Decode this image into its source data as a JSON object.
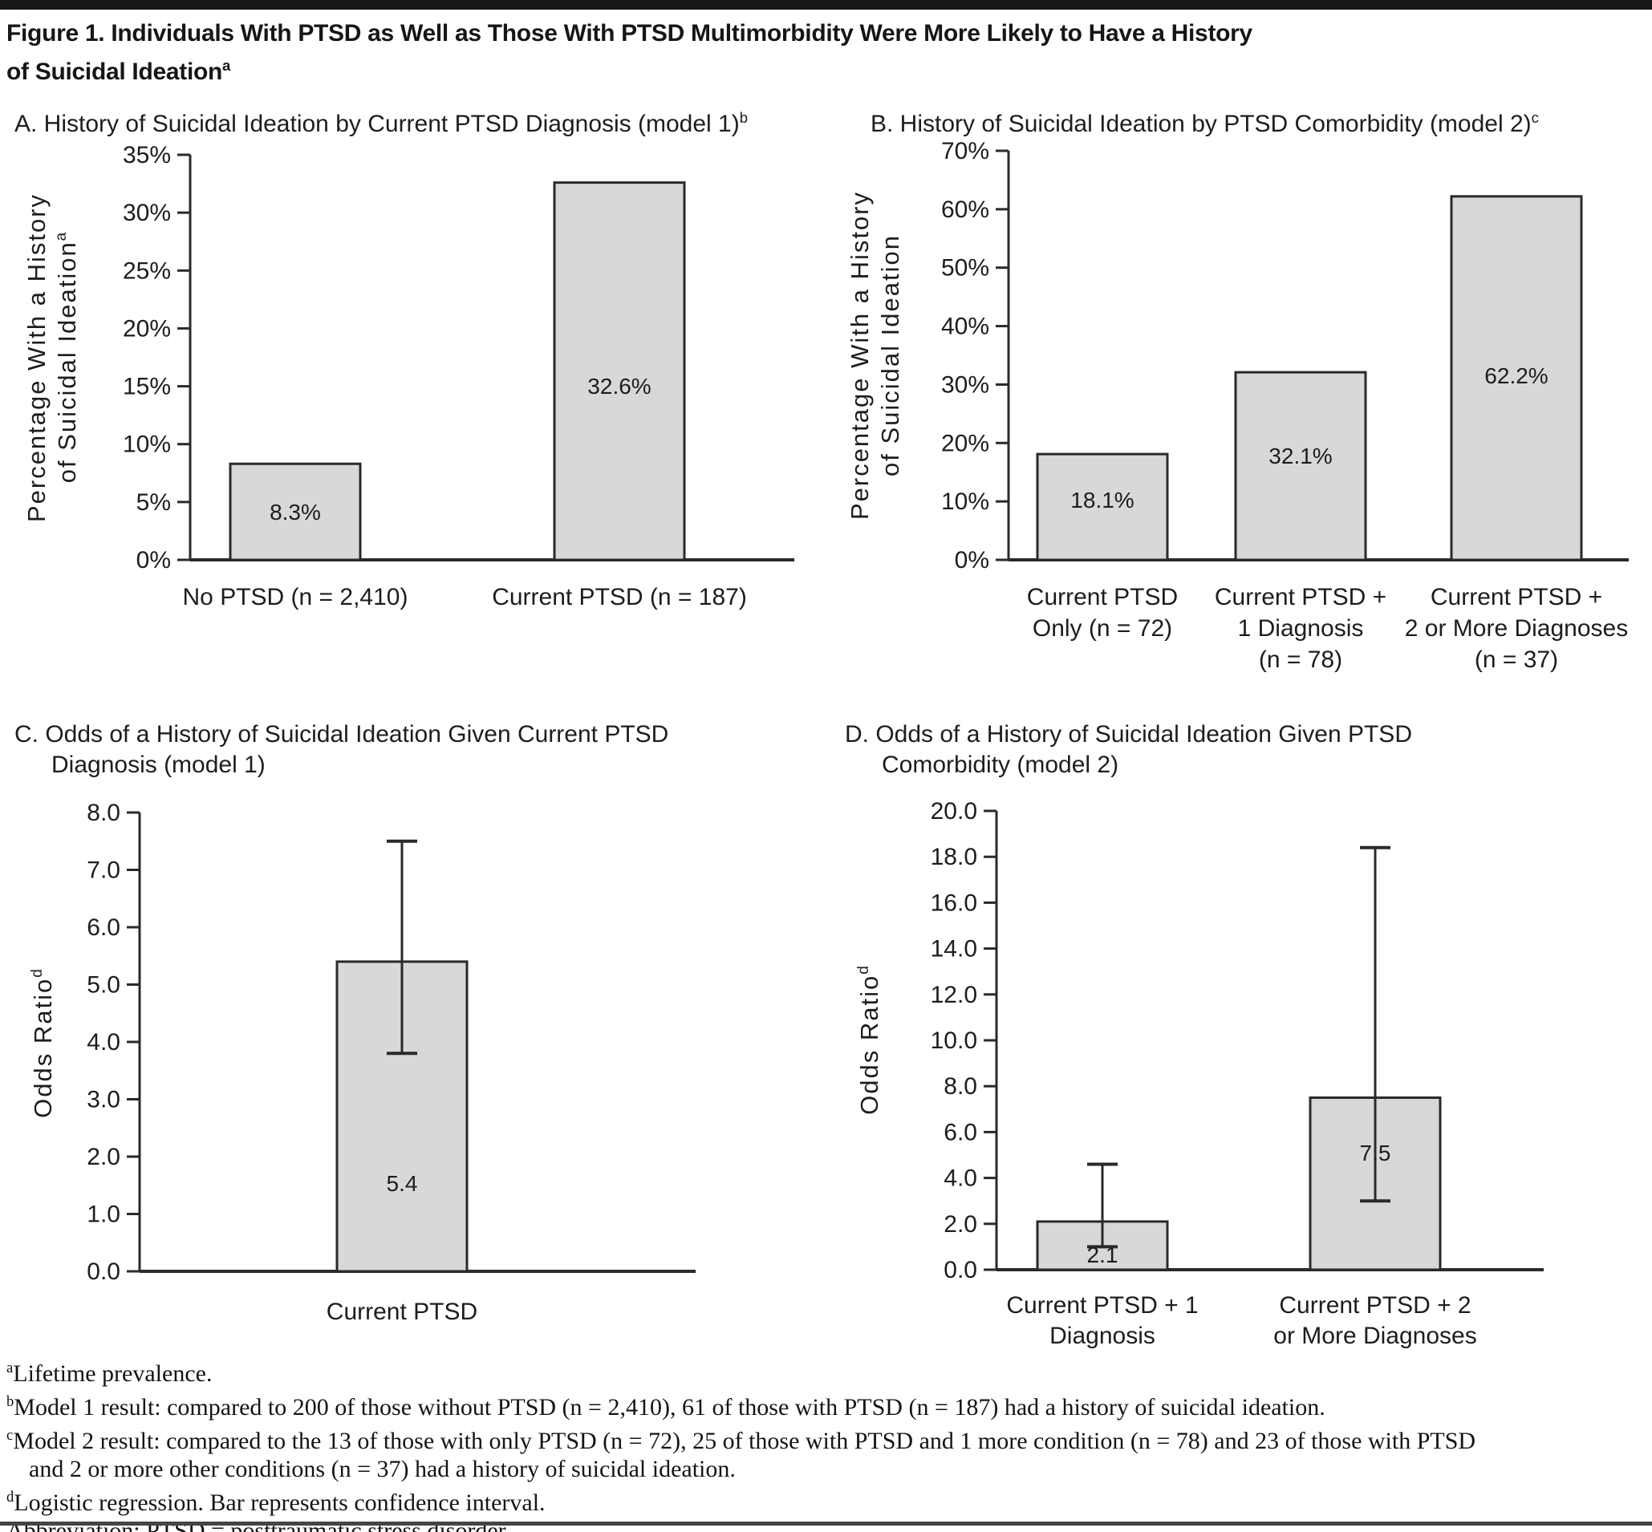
{
  "figure": {
    "title_lines": [
      "Figure 1. Individuals With PTSD as Well as Those With PTSD Multimorbidity Were More Likely to Have a History",
      "of Suicidal Ideation"
    ],
    "title_sup": "a"
  },
  "colors": {
    "bar_fill": "#d8d8d8",
    "bar_stroke": "#2b292a",
    "axis": "#2b292a",
    "text": "#1e1c1d",
    "rule": "#171717"
  },
  "chart_data": [
    {
      "panel": "A",
      "type": "bar",
      "title_lines": [
        "A. History of Suicidal Ideation by Current PTSD Diagnosis (model 1)"
      ],
      "title_sup": "b",
      "categories": [
        [
          "No PTSD (n = 2,410)"
        ],
        [
          "Current PTSD (n = 187)"
        ]
      ],
      "values": [
        8.3,
        32.6
      ],
      "bar_labels": [
        "8.3%",
        "32.6%"
      ],
      "ci": null,
      "ylabel_lines": [
        "Percentage With a History",
        "of Suicidal Ideation"
      ],
      "ylabel_sup": "a",
      "xlabel": "",
      "ylim": [
        0,
        35
      ],
      "ytick_step": 5,
      "ytick_labels": [
        "0%",
        "5%",
        "10%",
        "15%",
        "20%",
        "25%",
        "30%",
        "35%"
      ],
      "grid": false,
      "legend": null
    },
    {
      "panel": "B",
      "type": "bar",
      "title_lines": [
        "B. History of Suicidal Ideation by PTSD Comorbidity (model 2)"
      ],
      "title_sup": "c",
      "categories": [
        [
          "Current PTSD",
          "Only (n = 72)"
        ],
        [
          "Current PTSD +",
          "1 Diagnosis",
          "(n = 78)"
        ],
        [
          "Current PTSD +",
          "2 or More Diagnoses",
          "(n = 37)"
        ]
      ],
      "values": [
        18.1,
        32.1,
        62.2
      ],
      "bar_labels": [
        "18.1%",
        "32.1%",
        "62.2%"
      ],
      "ci": null,
      "ylabel_lines": [
        "Percentage With a History",
        "of Suicidal Ideation"
      ],
      "ylabel_sup": "",
      "xlabel": "",
      "ylim": [
        0,
        70
      ],
      "ytick_step": 10,
      "ytick_labels": [
        "0%",
        "10%",
        "20%",
        "30%",
        "40%",
        "50%",
        "60%",
        "70%"
      ],
      "grid": false,
      "legend": null
    },
    {
      "panel": "C",
      "type": "bar",
      "title_lines": [
        "C. Odds of a History of Suicidal Ideation Given Current PTSD",
        "Diagnosis (model 1)"
      ],
      "title_sup": "",
      "categories": [
        [
          "Current PTSD"
        ]
      ],
      "values": [
        5.4
      ],
      "bar_labels": [
        "5.4"
      ],
      "ci": [
        [
          3.8,
          7.5
        ]
      ],
      "ylabel_lines": [
        "Odds Ratio"
      ],
      "ylabel_sup": "d",
      "xlabel": "",
      "ylim": [
        0,
        8
      ],
      "ytick_step": 1,
      "ytick_labels": [
        "0.0",
        "1.0",
        "2.0",
        "3.0",
        "4.0",
        "5.0",
        "6.0",
        "7.0",
        "8.0"
      ],
      "grid": false,
      "legend": null
    },
    {
      "panel": "D",
      "type": "bar",
      "title_lines": [
        "D. Odds of a History of Suicidal Ideation Given PTSD",
        "Comorbidity (model 2)"
      ],
      "title_sup": "",
      "categories": [
        [
          "Current PTSD + 1",
          "Diagnosis"
        ],
        [
          "Current PTSD + 2",
          "or More Diagnoses"
        ]
      ],
      "values": [
        2.1,
        7.5
      ],
      "bar_labels": [
        "2.1",
        "7.5"
      ],
      "ci": [
        [
          1.0,
          4.6
        ],
        [
          3.0,
          18.4
        ]
      ],
      "ylabel_lines": [
        "Odds Ratio"
      ],
      "ylabel_sup": "d",
      "xlabel": "",
      "ylim": [
        0,
        20
      ],
      "ytick_step": 2,
      "ytick_labels": [
        "0.0",
        "2.0",
        "4.0",
        "6.0",
        "8.0",
        "10.0",
        "12.0",
        "14.0",
        "16.0",
        "18.0",
        "20.0"
      ],
      "grid": false,
      "legend": null
    }
  ],
  "footnotes": [
    {
      "sup": "a",
      "lines": [
        "Lifetime prevalence."
      ]
    },
    {
      "sup": "b",
      "lines": [
        "Model 1 result: compared to 200 of those without PTSD (n = 2,410), 61 of those with PTSD (n = 187) had a history of suicidal ideation."
      ]
    },
    {
      "sup": "c",
      "lines": [
        "Model 2 result: compared to the 13 of those with only PTSD (n = 72), 25 of those with PTSD and 1 more condition (n = 78) and 23 of those with PTSD",
        "and 2 or more other conditions (n = 37) had a history of suicidal ideation."
      ]
    },
    {
      "sup": "d",
      "lines": [
        "Logistic regression. Bar represents confidence interval."
      ]
    },
    {
      "sup": "",
      "lines": [
        "Abbreviation: PTSD = posttraumatic stress disorder."
      ]
    }
  ]
}
